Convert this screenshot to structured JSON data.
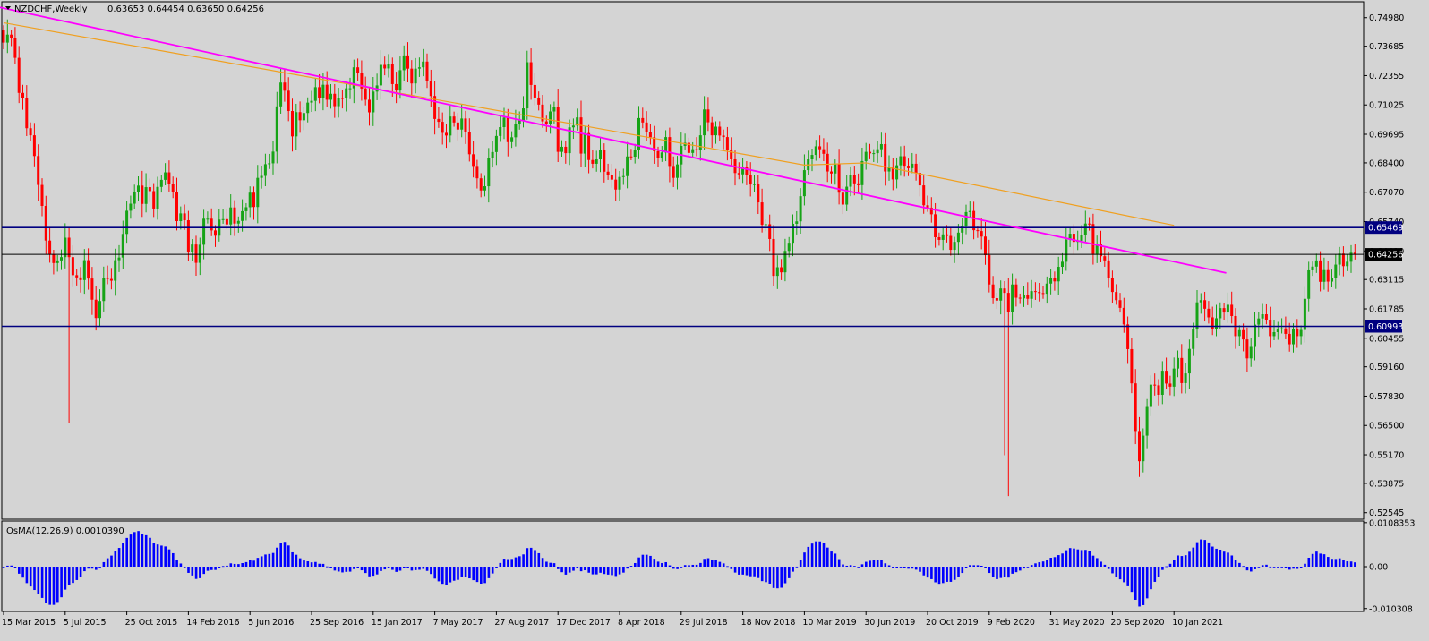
{
  "header": {
    "symbol": "NZDCHF,Weekly",
    "ohlc": "0.63653 0.64454 0.63650 0.64256"
  },
  "osma_header": "OsMA(12,26,9) 0.0010390",
  "colors": {
    "background": "#d4d4d4",
    "bull": "#16a316",
    "bear": "#ff0000",
    "trendline": "#ff00ff",
    "ma": "#f0a020",
    "level": "#000080",
    "histogram": "#0000ff"
  },
  "chart_data": [
    {
      "type": "candlestick",
      "symbol": "NZDCHF",
      "timeframe": "Weekly",
      "ylim": [
        0.5225,
        0.757
      ],
      "y_ticks": [
        "0.74980",
        "0.73685",
        "0.72355",
        "0.71025",
        "0.69695",
        "0.68400",
        "0.67070",
        "0.65740",
        "0.64410",
        "0.63115",
        "0.61785",
        "0.60455",
        "0.59160",
        "0.57830",
        "0.56500",
        "0.55170",
        "0.53875",
        "0.52545"
      ],
      "x_ticks": [
        "15 Mar 2015",
        "5 Jul 2015",
        "25 Oct 2015",
        "14 Feb 2016",
        "5 Jun 2016",
        "25 Sep 2016",
        "15 Jan 2017",
        "7 May 2017",
        "27 Aug 2017",
        "17 Dec 2017",
        "8 Apr 2018",
        "29 Jul 2018",
        "18 Nov 2018",
        "10 Mar 2019",
        "30 Jun 2019",
        "20 Oct 2019",
        "9 Feb 2020",
        "31 May 2020",
        "20 Sep 2020",
        "10 Jan 2021"
      ],
      "x_start": "15 Mar 2015",
      "bar_interval": "1 week",
      "closes": [
        0.7385,
        0.7421,
        0.7405,
        0.7316,
        0.7157,
        0.7132,
        0.6997,
        0.6965,
        0.6871,
        0.674,
        0.6645,
        0.6488,
        0.6425,
        0.6386,
        0.6398,
        0.6413,
        0.6501,
        0.6413,
        0.6331,
        0.6321,
        0.6309,
        0.6399,
        0.6316,
        0.622,
        0.6137,
        0.6214,
        0.6319,
        0.6314,
        0.6306,
        0.6399,
        0.6411,
        0.6518,
        0.6623,
        0.6655,
        0.671,
        0.6737,
        0.6654,
        0.673,
        0.6712,
        0.6633,
        0.6731,
        0.6763,
        0.6797,
        0.6745,
        0.6706,
        0.6576,
        0.6611,
        0.658,
        0.6436,
        0.647,
        0.6387,
        0.6469,
        0.6587,
        0.6587,
        0.6534,
        0.651,
        0.6583,
        0.6585,
        0.6561,
        0.6638,
        0.6565,
        0.6577,
        0.6621,
        0.6639,
        0.6705,
        0.664,
        0.6772,
        0.6781,
        0.6834,
        0.6838,
        0.6891,
        0.7096,
        0.7204,
        0.7167,
        0.7075,
        0.696,
        0.707,
        0.7033,
        0.7066,
        0.7113,
        0.7121,
        0.7183,
        0.7135,
        0.7194,
        0.7126,
        0.7153,
        0.7097,
        0.7134,
        0.7132,
        0.7178,
        0.7178,
        0.7273,
        0.7249,
        0.7177,
        0.7126,
        0.7069,
        0.7163,
        0.7191,
        0.7284,
        0.7268,
        0.7286,
        0.7197,
        0.7168,
        0.726,
        0.7327,
        0.7267,
        0.72,
        0.7267,
        0.7273,
        0.7299,
        0.7211,
        0.7143,
        0.7039,
        0.7026,
        0.6976,
        0.6964,
        0.705,
        0.7023,
        0.6991,
        0.7041,
        0.6981,
        0.6879,
        0.6826,
        0.677,
        0.6715,
        0.6734,
        0.6861,
        0.6889,
        0.6962,
        0.7002,
        0.7045,
        0.6934,
        0.6956,
        0.7017,
        0.7033,
        0.7087,
        0.7296,
        0.7193,
        0.7136,
        0.7104,
        0.7028,
        0.7015,
        0.7073,
        0.7094,
        0.689,
        0.6913,
        0.6884,
        0.7001,
        0.7009,
        0.7046,
        0.6882,
        0.6975,
        0.6853,
        0.6836,
        0.6856,
        0.6897,
        0.68,
        0.6787,
        0.6764,
        0.6719,
        0.6776,
        0.678,
        0.6869,
        0.6868,
        0.6899,
        0.7043,
        0.7023,
        0.6979,
        0.6956,
        0.6893,
        0.6864,
        0.6887,
        0.6957,
        0.6826,
        0.6772,
        0.6833,
        0.6917,
        0.6931,
        0.6885,
        0.6902,
        0.6897,
        0.6965,
        0.7082,
        0.7024,
        0.6965,
        0.7004,
        0.6964,
        0.6957,
        0.69,
        0.6856,
        0.6794,
        0.6788,
        0.6823,
        0.6783,
        0.6742,
        0.6744,
        0.6661,
        0.656,
        0.6562,
        0.6495,
        0.6328,
        0.6367,
        0.6344,
        0.6441,
        0.6478,
        0.6564,
        0.6575,
        0.6689,
        0.6807,
        0.6856,
        0.6876,
        0.6915,
        0.6902,
        0.6881,
        0.6801,
        0.6792,
        0.6834,
        0.6705,
        0.6651,
        0.6732,
        0.6786,
        0.6747,
        0.6739,
        0.6848,
        0.689,
        0.6883,
        0.6884,
        0.6902,
        0.6925,
        0.6801,
        0.6822,
        0.6765,
        0.6829,
        0.687,
        0.6827,
        0.6816,
        0.6836,
        0.6795,
        0.6738,
        0.6648,
        0.6637,
        0.6607,
        0.6503,
        0.6491,
        0.6516,
        0.6509,
        0.6446,
        0.6482,
        0.6524,
        0.6555,
        0.6617,
        0.6622,
        0.6535,
        0.6531,
        0.6506,
        0.6422,
        0.6289,
        0.6227,
        0.6216,
        0.6271,
        0.6251,
        0.6166,
        0.6289,
        0.6229,
        0.6226,
        0.6242,
        0.6224,
        0.6259,
        0.6255,
        0.625,
        0.6247,
        0.6293,
        0.6319,
        0.6303,
        0.6369,
        0.6392,
        0.6492,
        0.6519,
        0.6482,
        0.6487,
        0.6514,
        0.6565,
        0.6563,
        0.6427,
        0.6474,
        0.6417,
        0.6398,
        0.6318,
        0.6255,
        0.6218,
        0.6183,
        0.6108,
        0.5996,
        0.5841,
        0.5625,
        0.5488,
        0.5604,
        0.5734,
        0.5835,
        0.5832,
        0.5789,
        0.5898,
        0.584,
        0.5826,
        0.5908,
        0.5956,
        0.5842,
        0.5886,
        0.5997,
        0.6085,
        0.6208,
        0.6218,
        0.6179,
        0.614,
        0.6086,
        0.6136,
        0.6182,
        0.6162,
        0.6197,
        0.6146,
        0.6055,
        0.6082,
        0.604,
        0.5954,
        0.6006,
        0.6107,
        0.6135,
        0.6154,
        0.6129,
        0.6055,
        0.6073,
        0.6087,
        0.609,
        0.6065,
        0.6018,
        0.6086,
        0.6055,
        0.6083,
        0.6224,
        0.6353,
        0.637,
        0.6398,
        0.6301,
        0.6354,
        0.6302,
        0.6318,
        0.6379,
        0.6429,
        0.6372,
        0.6392,
        0.6433,
        0.6426
      ]
    },
    {
      "type": "line",
      "series": [
        {
          "values_kind": "moving average (orange)",
          "x": [
            "15 Mar 2015",
            "10 Mar 2019",
            "30 Jun 2019",
            "10 Jan 2021"
          ],
          "y": [
            0.7475,
            0.683,
            0.684,
            0.6557
          ]
        }
      ]
    },
    {
      "type": "line",
      "series": [
        {
          "values_kind": "trendline (magenta)",
          "x": [
            "8 Feb 2015",
            "Apr 2021"
          ],
          "y": [
            0.756,
            0.6341
          ]
        }
      ]
    },
    {
      "type": "hline",
      "levels": [
        {
          "value": 0.65469,
          "label": "0.65469"
        },
        {
          "value": 0.64256,
          "label": "0.64256"
        },
        {
          "value": 0.60993,
          "label": "0.60993"
        }
      ]
    },
    {
      "type": "bar",
      "title": "OsMA(12,26,9) 0.0010390",
      "ylim": [
        -0.0108,
        0.0108
      ],
      "y_ticks": [
        "0.0108353",
        "0.00",
        "-0.010308"
      ]
    }
  ]
}
